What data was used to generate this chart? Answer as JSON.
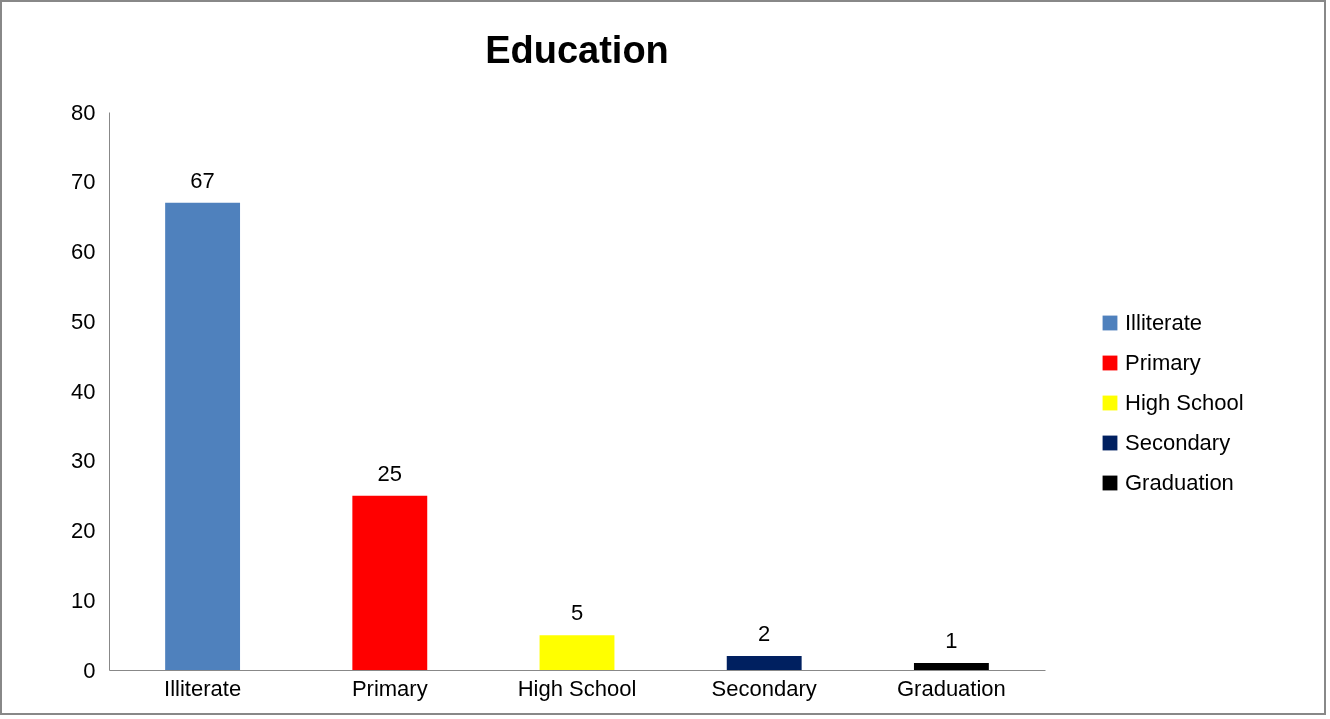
{
  "chart_data": {
    "type": "bar",
    "title": "Education",
    "categories": [
      "Illiterate",
      "Primary",
      "High School",
      "Secondary",
      "Graduation"
    ],
    "series": [
      {
        "name": "Illiterate",
        "color": "#4f81bd",
        "values": [
          67,
          null,
          null,
          null,
          null
        ]
      },
      {
        "name": "Primary",
        "color": "#ff0000",
        "values": [
          null,
          25,
          null,
          null,
          null
        ]
      },
      {
        "name": "High School",
        "color": "#ffff00",
        "values": [
          null,
          null,
          5,
          null,
          null
        ]
      },
      {
        "name": "Secondary",
        "color": "#002060",
        "values": [
          null,
          null,
          null,
          2,
          null
        ]
      },
      {
        "name": "Graduation",
        "color": "#000000",
        "values": [
          null,
          null,
          null,
          null,
          1
        ]
      }
    ],
    "ylim": [
      0,
      80
    ],
    "yticks": [
      0,
      10,
      20,
      30,
      40,
      50,
      60,
      70,
      80
    ],
    "data_labels": true,
    "legend": "right",
    "grid": false
  }
}
